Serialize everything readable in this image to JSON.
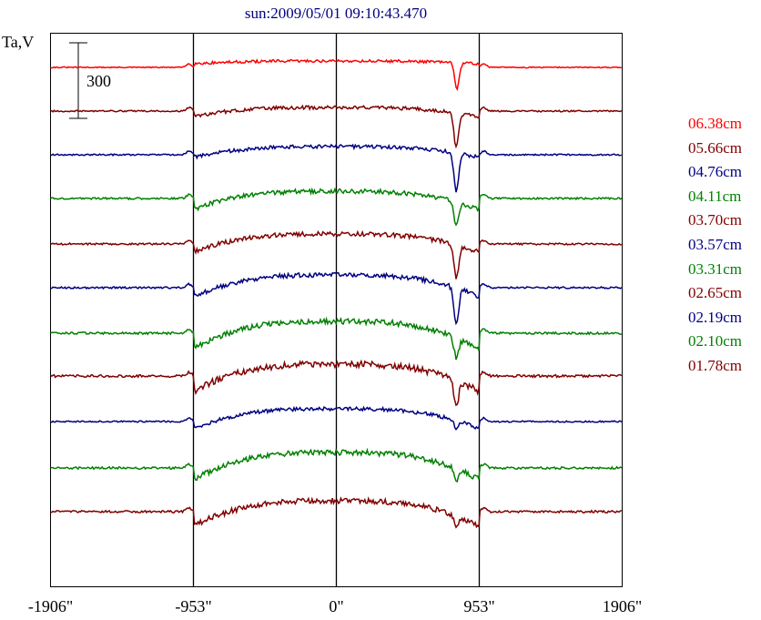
{
  "chart_data": {
    "type": "line",
    "title": "sun:2009/05/01 09:10:43.470",
    "ylabel": "Ta,V",
    "xlim": [
      -1906,
      1906
    ],
    "x_ticks": [
      -1906,
      -953,
      0,
      953,
      1906
    ],
    "x_tick_labels": [
      "-1906\"",
      "-953\"",
      "0\"",
      "953\"",
      "1906\""
    ],
    "vertical_reference_lines": [
      -953,
      0,
      953
    ],
    "scale_bar": {
      "label": "300",
      "value": 300
    },
    "grid": false,
    "legend_placement": "right",
    "series": [
      {
        "name": "06.38cm",
        "color": "#ff0000",
        "baseline": 74,
        "disk_level": 7,
        "limb_dip": -3,
        "spot_dip": -28,
        "spot_position": 804,
        "noise": 1.5
      },
      {
        "name": "05.66cm",
        "color": "#800000",
        "baseline": 122,
        "disk_level": 4,
        "limb_dip": -10,
        "spot_dip": -38,
        "spot_position": 800,
        "noise": 2
      },
      {
        "name": "04.76cm",
        "color": "#000080",
        "baseline": 170,
        "disk_level": 9,
        "limb_dip": -12,
        "spot_dip": -42,
        "spot_position": 800,
        "noise": 2
      },
      {
        "name": "04.11cm",
        "color": "#008000",
        "baseline": 218,
        "disk_level": 8,
        "limb_dip": -20,
        "spot_dip": -26,
        "spot_position": 800,
        "noise": 2.5
      },
      {
        "name": "03.70cm",
        "color": "#800000",
        "baseline": 268,
        "disk_level": 11,
        "limb_dip": -20,
        "spot_dip": -36,
        "spot_position": 800,
        "noise": 2.5
      },
      {
        "name": "03.57cm",
        "color": "#000080",
        "baseline": 316,
        "disk_level": 14,
        "limb_dip": -24,
        "spot_dip": -40,
        "spot_position": 800,
        "noise": 2.5
      },
      {
        "name": "03.31cm",
        "color": "#008000",
        "baseline": 366,
        "disk_level": 13,
        "limb_dip": -30,
        "spot_dip": -22,
        "spot_position": 800,
        "noise": 3
      },
      {
        "name": "02.65cm",
        "color": "#800000",
        "baseline": 413,
        "disk_level": 13,
        "limb_dip": -30,
        "spot_dip": -28,
        "spot_position": 800,
        "noise": 3.5
      },
      {
        "name": "02.19cm",
        "color": "#000080",
        "baseline": 463,
        "disk_level": 14,
        "limb_dip": -22,
        "spot_dip": -8,
        "spot_position": 800,
        "noise": 2
      },
      {
        "name": "02.10cm",
        "color": "#008000",
        "baseline": 514,
        "disk_level": 17,
        "limb_dip": -30,
        "spot_dip": -14,
        "spot_position": 800,
        "noise": 3
      },
      {
        "name": "01.78cm",
        "color": "#800000",
        "baseline": 562,
        "disk_level": 12,
        "limb_dip": -28,
        "spot_dip": -10,
        "spot_position": 800,
        "noise": 3
      }
    ]
  }
}
